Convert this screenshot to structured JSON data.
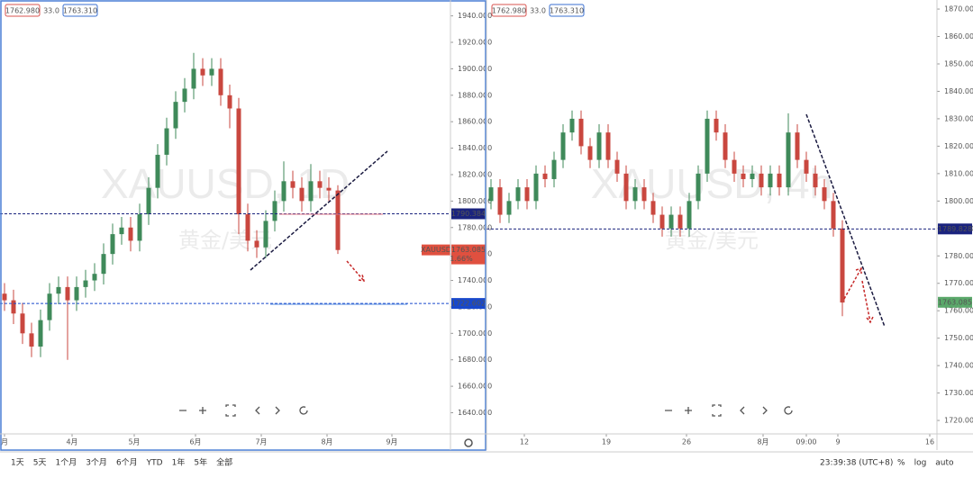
{
  "chart_data": [
    {
      "type": "candlestick",
      "watermark": "XAUUSD, 1D",
      "watermark_sub": "黄金/美元",
      "legend": [
        "1762.980",
        "33.0",
        "1763.310"
      ],
      "up_color": "#3f8a5a",
      "down_color": "#c9473f",
      "ohlc": [
        [
          1730,
          1738,
          1717,
          1725
        ],
        [
          1725,
          1733,
          1707,
          1715
        ],
        [
          1715,
          1723,
          1692,
          1700
        ],
        [
          1700,
          1708,
          1682,
          1690
        ],
        [
          1690,
          1718,
          1682,
          1710
        ],
        [
          1710,
          1738,
          1702,
          1730
        ],
        [
          1730,
          1743,
          1722,
          1735
        ],
        [
          1735,
          1743,
          1680,
          1725
        ],
        [
          1725,
          1743,
          1717,
          1735
        ],
        [
          1735,
          1748,
          1727,
          1740
        ],
        [
          1740,
          1753,
          1732,
          1745
        ],
        [
          1745,
          1768,
          1737,
          1760
        ],
        [
          1760,
          1783,
          1752,
          1775
        ],
        [
          1775,
          1788,
          1767,
          1780
        ],
        [
          1780,
          1788,
          1762,
          1770
        ],
        [
          1770,
          1798,
          1762,
          1790
        ],
        [
          1790,
          1818,
          1782,
          1810
        ],
        [
          1810,
          1843,
          1802,
          1835
        ],
        [
          1835,
          1863,
          1827,
          1855
        ],
        [
          1855,
          1883,
          1847,
          1875
        ],
        [
          1875,
          1893,
          1867,
          1885
        ],
        [
          1885,
          1912,
          1877,
          1900
        ],
        [
          1900,
          1908,
          1887,
          1895
        ],
        [
          1895,
          1908,
          1887,
          1900
        ],
        [
          1900,
          1908,
          1872,
          1880
        ],
        [
          1880,
          1888,
          1855,
          1870
        ],
        [
          1870,
          1878,
          1775,
          1790
        ],
        [
          1790,
          1798,
          1762,
          1770
        ],
        [
          1770,
          1778,
          1757,
          1765
        ],
        [
          1765,
          1793,
          1757,
          1785
        ],
        [
          1785,
          1808,
          1777,
          1800
        ],
        [
          1800,
          1830,
          1792,
          1815
        ],
        [
          1815,
          1823,
          1802,
          1810
        ],
        [
          1810,
          1818,
          1792,
          1800
        ],
        [
          1800,
          1828,
          1792,
          1815
        ],
        [
          1815,
          1823,
          1802,
          1810
        ],
        [
          1810,
          1818,
          1800,
          1808
        ],
        [
          1808,
          1812,
          1760,
          1763
        ]
      ],
      "xlim": [
        -0.5,
        49.5
      ],
      "xticks": [
        {
          "value": 0,
          "label": "月"
        },
        {
          "value": 7.5,
          "label": "4月"
        },
        {
          "value": 14.4,
          "label": "5月"
        },
        {
          "value": 21.2,
          "label": "6月"
        },
        {
          "value": 28.5,
          "label": "7月"
        },
        {
          "value": 35.8,
          "label": "8月"
        },
        {
          "value": 43,
          "label": "9月"
        }
      ],
      "ylim": [
        1624,
        1952
      ],
      "yticks": [
        {
          "value": 1640,
          "label": "1640.000"
        },
        {
          "value": 1660,
          "label": "1660.000"
        },
        {
          "value": 1680,
          "label": "1680.000"
        },
        {
          "value": 1700,
          "label": "1700.000"
        },
        {
          "value": 1720,
          "label": "1720.000"
        },
        {
          "value": 1740,
          "label": "1740.000"
        },
        {
          "value": 1760,
          "label": "1760.000"
        },
        {
          "value": 1780,
          "label": "1780.000"
        },
        {
          "value": 1800,
          "label": "1800.000"
        },
        {
          "value": 1820,
          "label": "1820.000"
        },
        {
          "value": 1840,
          "label": "1840.000"
        },
        {
          "value": 1860,
          "label": "1860.000"
        },
        {
          "value": 1880,
          "label": "1880.000"
        },
        {
          "value": 1900,
          "label": "1900.000"
        },
        {
          "value": 1920,
          "label": "1920.000"
        },
        {
          "value": 1940,
          "label": "1940.000"
        }
      ],
      "price_lines": [
        {
          "value": 1790.384,
          "color": "#1a237e"
        },
        {
          "value": 1722.602,
          "color": "#1848cc"
        }
      ],
      "current": {
        "symbol": "XAUUSD",
        "value": 1763.085,
        "change": "1.66%",
        "color": "#e0503f"
      }
    },
    {
      "type": "candlestick",
      "watermark": "XAUUSD, 4h",
      "watermark_sub": "黄金/美元",
      "legend": [
        "1762.980",
        "33.0",
        "1763.310"
      ],
      "up_color": "#3f8a5a",
      "down_color": "#c9473f",
      "ohlc": [
        [
          1800,
          1808,
          1797,
          1805
        ],
        [
          1805,
          1808,
          1792,
          1795
        ],
        [
          1795,
          1803,
          1792,
          1800
        ],
        [
          1800,
          1808,
          1797,
          1805
        ],
        [
          1805,
          1808,
          1797,
          1800
        ],
        [
          1800,
          1813,
          1797,
          1810
        ],
        [
          1810,
          1813,
          1805,
          1808
        ],
        [
          1808,
          1818,
          1805,
          1815
        ],
        [
          1815,
          1828,
          1812,
          1825
        ],
        [
          1825,
          1833,
          1822,
          1830
        ],
        [
          1830,
          1833,
          1817,
          1820
        ],
        [
          1820,
          1823,
          1812,
          1815
        ],
        [
          1815,
          1828,
          1812,
          1825
        ],
        [
          1825,
          1828,
          1812,
          1815
        ],
        [
          1815,
          1818,
          1807,
          1810
        ],
        [
          1810,
          1813,
          1797,
          1800
        ],
        [
          1800,
          1808,
          1797,
          1805
        ],
        [
          1805,
          1808,
          1797,
          1800
        ],
        [
          1800,
          1803,
          1792,
          1795
        ],
        [
          1795,
          1798,
          1787,
          1790
        ],
        [
          1790,
          1798,
          1787,
          1795
        ],
        [
          1795,
          1798,
          1787,
          1790
        ],
        [
          1790,
          1803,
          1787,
          1800
        ],
        [
          1800,
          1813,
          1797,
          1810
        ],
        [
          1810,
          1833,
          1807,
          1830
        ],
        [
          1830,
          1833,
          1822,
          1825
        ],
        [
          1825,
          1828,
          1812,
          1815
        ],
        [
          1815,
          1818,
          1807,
          1810
        ],
        [
          1810,
          1813,
          1805,
          1808
        ],
        [
          1808,
          1813,
          1805,
          1810
        ],
        [
          1810,
          1813,
          1802,
          1805
        ],
        [
          1805,
          1813,
          1802,
          1810
        ],
        [
          1810,
          1813,
          1802,
          1805
        ],
        [
          1805,
          1832,
          1802,
          1825
        ],
        [
          1825,
          1828,
          1812,
          1815
        ],
        [
          1815,
          1818,
          1807,
          1810
        ],
        [
          1810,
          1813,
          1802,
          1805
        ],
        [
          1805,
          1808,
          1797,
          1800
        ],
        [
          1800,
          1803,
          1787,
          1790
        ],
        [
          1790,
          1793,
          1758,
          1763
        ]
      ],
      "xlim": [
        -0.5,
        49.5
      ],
      "xticks": [
        {
          "value": 3.7,
          "label": "12"
        },
        {
          "value": 12.8,
          "label": "19"
        },
        {
          "value": 21.7,
          "label": "26"
        },
        {
          "value": 30.2,
          "label": "8月"
        },
        {
          "value": 35,
          "label": "09:00"
        },
        {
          "value": 38.5,
          "label": "9"
        },
        {
          "value": 48.7,
          "label": "16"
        }
      ],
      "ylim": [
        1715.1,
        1873.3
      ],
      "yticks": [
        {
          "value": 1720,
          "label": "1720.000"
        },
        {
          "value": 1730,
          "label": "1730.000"
        },
        {
          "value": 1740,
          "label": "1740.000"
        },
        {
          "value": 1750,
          "label": "1750.000"
        },
        {
          "value": 1760,
          "label": "1760.000"
        },
        {
          "value": 1770,
          "label": "1770.000"
        },
        {
          "value": 1780,
          "label": "1780.000"
        },
        {
          "value": 1790,
          "label": "1790.000"
        },
        {
          "value": 1800,
          "label": "1800.000"
        },
        {
          "value": 1810,
          "label": "1810.000"
        },
        {
          "value": 1820,
          "label": "1820.000"
        },
        {
          "value": 1830,
          "label": "1830.000"
        },
        {
          "value": 1840,
          "label": "1840.000"
        },
        {
          "value": 1850,
          "label": "1850.000"
        },
        {
          "value": 1860,
          "label": "1860.000"
        },
        {
          "value": 1870,
          "label": "1870.000"
        }
      ],
      "price_lines": [
        {
          "value": 1789.828,
          "color": "#1a237e"
        }
      ],
      "current": {
        "value": 1763.085,
        "color": "#5aa86a"
      }
    }
  ],
  "toolbar": {
    "ranges": [
      "1天",
      "5天",
      "1个月",
      "3个月",
      "6个月",
      "YTD",
      "1年",
      "5年",
      "全部"
    ],
    "time": "23:39:38 (UTC+8)",
    "options": [
      "%",
      "log",
      "auto"
    ]
  }
}
